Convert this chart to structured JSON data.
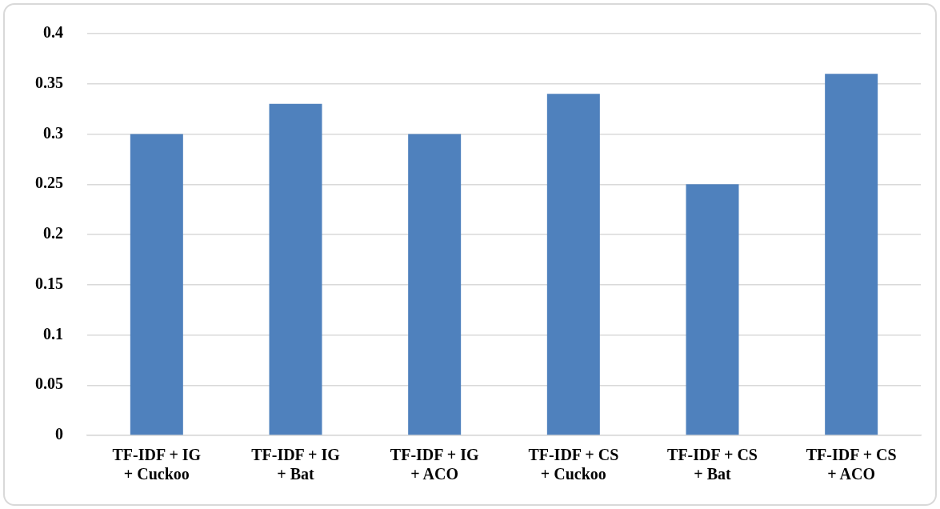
{
  "chart_data": {
    "type": "bar",
    "categories": [
      "TF-IDF + IG\n+ Cuckoo",
      "TF-IDF + IG\n+ Bat",
      "TF-IDF + IG\n+ ACO",
      "TF-IDF + CS\n+ Cuckoo",
      "TF-IDF + CS\n+ Bat",
      "TF-IDF + CS\n+ ACO"
    ],
    "values": [
      0.3,
      0.33,
      0.3,
      0.34,
      0.25,
      0.36
    ],
    "color": "#4f81bd",
    "ylim": [
      0,
      0.4
    ],
    "yticks": [
      0,
      0.05,
      0.1,
      0.15,
      0.2,
      0.25,
      0.3,
      0.35,
      0.4
    ],
    "grid": "y",
    "legend": false
  }
}
